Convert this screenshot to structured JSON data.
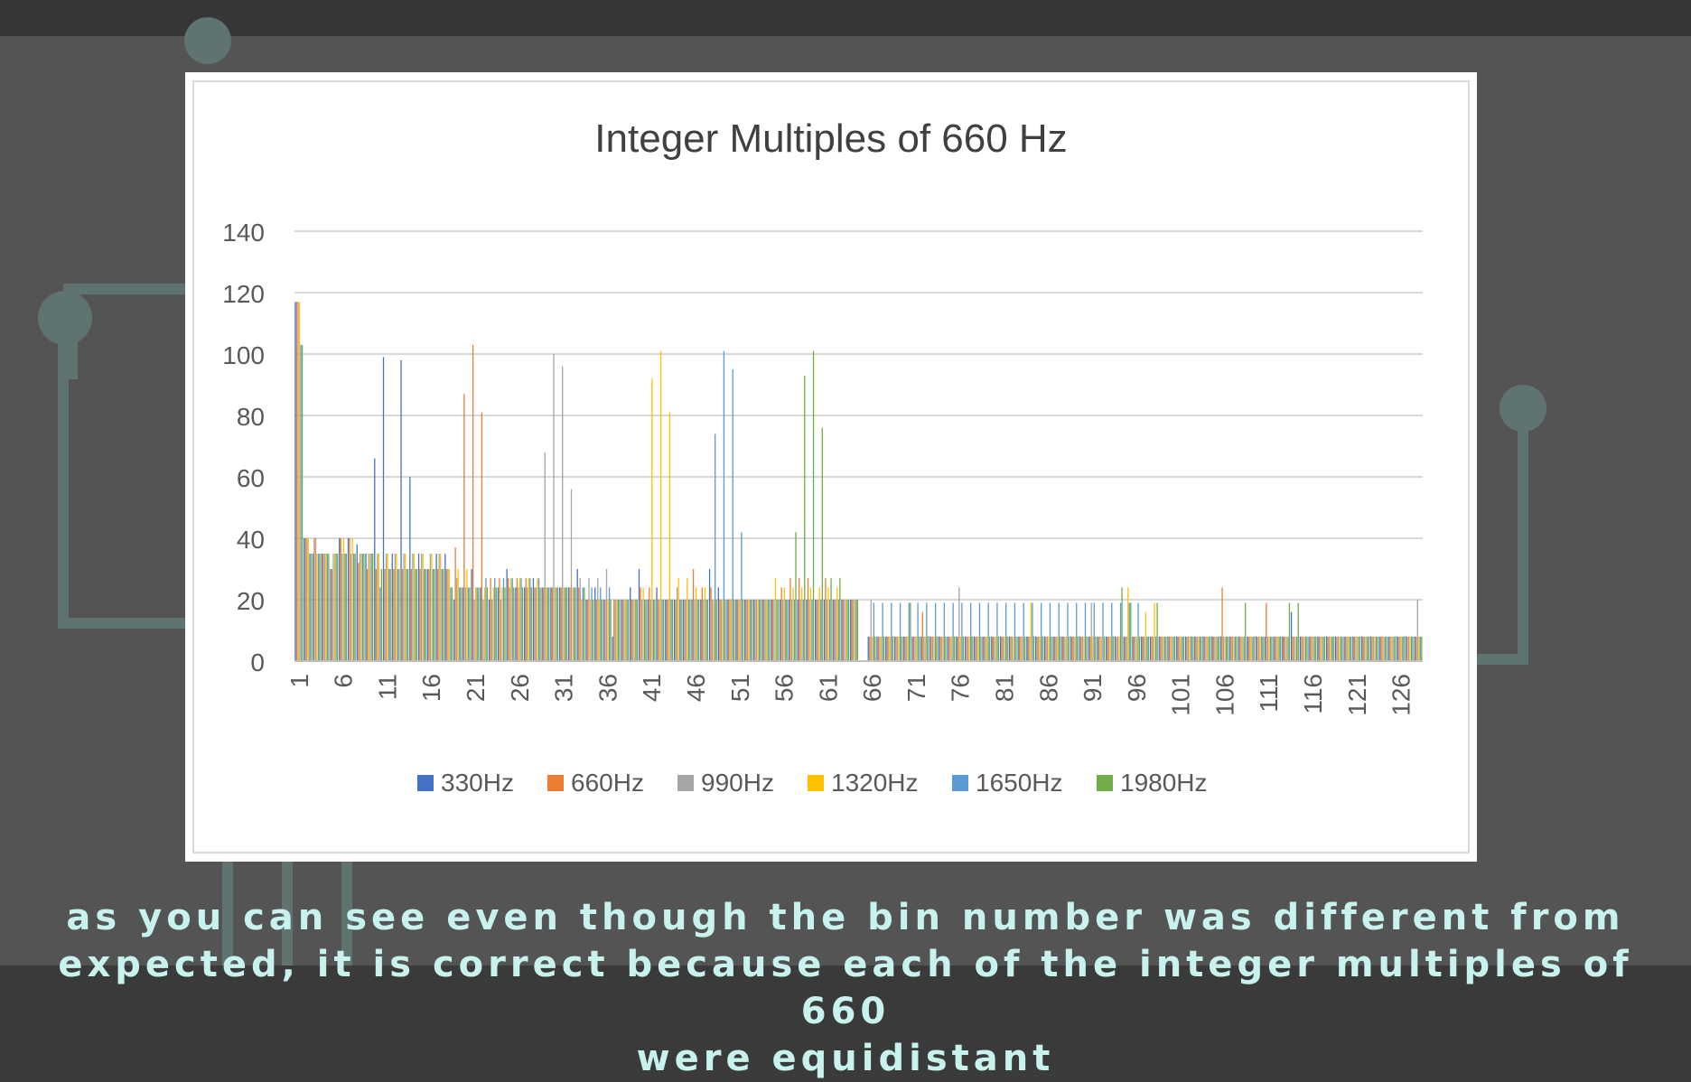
{
  "caption": {
    "line1": "as you can see even though the bin number was different from",
    "line2": "expected, it is correct because each of the integer multiples of 660",
    "line3": "were equidistant"
  },
  "colors": {
    "slide_background": "#545454",
    "caption_text": "#c8f2ee",
    "decoration": "#5f7370"
  },
  "chart_data": {
    "type": "bar",
    "title": "Integer Multiples of 660 Hz",
    "xlabel": "",
    "ylabel": "",
    "ylim": [
      0,
      140
    ],
    "yticks": [
      0,
      20,
      40,
      60,
      80,
      100,
      120,
      140
    ],
    "x_range": [
      1,
      128
    ],
    "xtick_labels": [
      "1",
      "6",
      "11",
      "16",
      "21",
      "26",
      "31",
      "36",
      "41",
      "46",
      "51",
      "56",
      "61",
      "66",
      "71",
      "76",
      "81",
      "86",
      "91",
      "96",
      "101",
      "106",
      "111",
      "116",
      "121",
      "126"
    ],
    "grid": true,
    "legend_position": "bottom",
    "series": [
      {
        "name": "330Hz",
        "color": "#4472c4",
        "values": [
          117,
          40,
          35,
          35,
          30,
          40,
          40,
          38,
          35,
          66,
          99,
          35,
          98,
          60,
          35,
          30,
          35,
          35,
          20,
          24,
          30,
          24,
          20,
          24,
          30,
          24,
          24,
          27,
          24,
          24,
          24,
          24,
          30,
          20,
          24,
          20,
          8,
          20,
          24,
          30,
          20,
          24,
          20,
          20,
          20,
          20,
          20,
          30,
          24,
          20,
          20,
          20,
          20,
          20,
          20,
          20,
          20,
          20,
          20,
          20,
          20,
          20,
          20,
          20,
          0,
          8,
          8,
          8,
          8,
          8,
          8,
          8,
          8,
          8,
          8,
          8,
          8,
          8,
          8,
          8,
          8,
          8,
          8,
          8,
          8,
          8,
          8,
          8,
          8,
          8,
          8,
          8,
          8,
          8,
          8,
          8,
          8,
          8,
          8,
          8,
          8,
          8,
          8,
          8,
          8,
          8,
          8,
          8,
          8,
          8,
          8,
          8,
          8,
          16,
          8,
          8,
          8,
          8,
          8,
          8,
          8,
          8,
          8,
          8,
          8,
          8,
          8,
          8
        ]
      },
      {
        "name": "660Hz",
        "color": "#ed7d31",
        "values": [
          117,
          40,
          40,
          35,
          30,
          40,
          40,
          32,
          30,
          30,
          30,
          30,
          30,
          30,
          30,
          30,
          30,
          30,
          37,
          87,
          103,
          81,
          27,
          27,
          27,
          27,
          27,
          24,
          24,
          24,
          24,
          24,
          24,
          20,
          20,
          20,
          20,
          20,
          20,
          24,
          24,
          20,
          20,
          20,
          20,
          30,
          24,
          24,
          20,
          20,
          20,
          20,
          20,
          20,
          20,
          24,
          27,
          27,
          27,
          20,
          27,
          20,
          20,
          20,
          0,
          8,
          8,
          8,
          8,
          8,
          8,
          16,
          8,
          8,
          8,
          8,
          8,
          8,
          8,
          8,
          8,
          8,
          8,
          8,
          8,
          8,
          8,
          8,
          8,
          8,
          8,
          8,
          8,
          8,
          8,
          8,
          8,
          8,
          8,
          8,
          8,
          8,
          8,
          8,
          8,
          24,
          8,
          8,
          8,
          8,
          19,
          8,
          8,
          8,
          8,
          8,
          8,
          8,
          8,
          8,
          8,
          8,
          8,
          8,
          8,
          8,
          8,
          8
        ]
      },
      {
        "name": "990Hz",
        "color": "#a5a5a5",
        "values": [
          117,
          40,
          40,
          35,
          35,
          35,
          35,
          35,
          35,
          35,
          35,
          35,
          35,
          35,
          35,
          35,
          35,
          30,
          27,
          24,
          20,
          20,
          20,
          20,
          24,
          24,
          24,
          24,
          68,
          100,
          96,
          56,
          27,
          27,
          27,
          30,
          20,
          20,
          20,
          20,
          20,
          20,
          20,
          24,
          20,
          20,
          20,
          20,
          20,
          20,
          20,
          20,
          20,
          20,
          20,
          20,
          20,
          20,
          20,
          20,
          20,
          20,
          20,
          20,
          0,
          20,
          8,
          8,
          8,
          8,
          8,
          8,
          8,
          8,
          8,
          24,
          8,
          8,
          8,
          8,
          8,
          8,
          8,
          8,
          8,
          8,
          8,
          8,
          8,
          8,
          19,
          8,
          8,
          8,
          8,
          8,
          8,
          8,
          8,
          8,
          8,
          8,
          8,
          8,
          8,
          8,
          8,
          8,
          8,
          8,
          8,
          8,
          8,
          8,
          8,
          8,
          8,
          8,
          8,
          8,
          8,
          8,
          8,
          8,
          8,
          8,
          8,
          20
        ]
      },
      {
        "name": "1320Hz",
        "color": "#ffc000",
        "values": [
          117,
          40,
          35,
          35,
          35,
          40,
          40,
          35,
          35,
          35,
          35,
          35,
          35,
          35,
          35,
          35,
          35,
          30,
          30,
          30,
          24,
          24,
          24,
          24,
          27,
          27,
          27,
          27,
          24,
          24,
          24,
          24,
          20,
          20,
          20,
          20,
          20,
          20,
          20,
          24,
          92,
          101,
          81,
          27,
          27,
          24,
          24,
          20,
          20,
          20,
          20,
          20,
          20,
          20,
          27,
          24,
          24,
          24,
          24,
          24,
          24,
          24,
          20,
          20,
          0,
          8,
          8,
          8,
          8,
          8,
          8,
          8,
          8,
          8,
          8,
          8,
          8,
          8,
          8,
          8,
          8,
          8,
          8,
          19,
          8,
          8,
          8,
          8,
          8,
          8,
          8,
          8,
          8,
          8,
          24,
          8,
          16,
          19,
          8,
          8,
          8,
          8,
          8,
          8,
          8,
          8,
          8,
          8,
          8,
          8,
          8,
          8,
          8,
          8,
          8,
          8,
          8,
          8,
          8,
          8,
          8,
          8,
          8,
          8,
          8,
          8,
          8,
          8
        ]
      },
      {
        "name": "1650Hz",
        "color": "#5b9bd5",
        "values": [
          103,
          35,
          35,
          35,
          35,
          35,
          35,
          35,
          35,
          24,
          30,
          30,
          30,
          30,
          30,
          30,
          30,
          24,
          24,
          24,
          24,
          27,
          27,
          27,
          27,
          27,
          27,
          27,
          24,
          24,
          24,
          24,
          24,
          24,
          24,
          24,
          20,
          20,
          20,
          20,
          20,
          20,
          20,
          20,
          20,
          20,
          20,
          74,
          101,
          95,
          42,
          20,
          20,
          20,
          20,
          20,
          20,
          20,
          20,
          20,
          20,
          20,
          20,
          20,
          0,
          19,
          19,
          19,
          19,
          19,
          19,
          19,
          19,
          19,
          19,
          19,
          19,
          19,
          19,
          19,
          19,
          19,
          19,
          19,
          19,
          19,
          19,
          19,
          19,
          19,
          19,
          19,
          19,
          19,
          19,
          19,
          8,
          8,
          8,
          8,
          8,
          8,
          8,
          8,
          8,
          8,
          8,
          8,
          8,
          8,
          8,
          8,
          8,
          8,
          8,
          8,
          8,
          8,
          8,
          8,
          8,
          8,
          8,
          8,
          8,
          8,
          8,
          8
        ]
      },
      {
        "name": "1980Hz",
        "color": "#70ad47",
        "values": [
          103,
          35,
          35,
          35,
          35,
          35,
          35,
          35,
          35,
          30,
          30,
          30,
          30,
          30,
          30,
          30,
          30,
          24,
          24,
          24,
          24,
          24,
          24,
          24,
          24,
          24,
          24,
          24,
          24,
          24,
          24,
          24,
          24,
          20,
          20,
          20,
          20,
          20,
          20,
          20,
          20,
          20,
          20,
          20,
          20,
          20,
          20,
          20,
          20,
          20,
          20,
          20,
          20,
          20,
          20,
          20,
          42,
          93,
          101,
          76,
          27,
          27,
          20,
          20,
          0,
          8,
          8,
          8,
          8,
          19,
          8,
          8,
          8,
          8,
          8,
          8,
          8,
          8,
          8,
          8,
          8,
          8,
          8,
          8,
          8,
          8,
          8,
          8,
          8,
          8,
          8,
          8,
          8,
          24,
          19,
          8,
          8,
          19,
          8,
          8,
          8,
          8,
          8,
          8,
          8,
          8,
          8,
          19,
          8,
          8,
          8,
          8,
          19,
          19,
          8,
          8,
          8,
          8,
          8,
          8,
          8,
          8,
          8,
          8,
          8,
          8,
          8,
          8
        ]
      }
    ]
  }
}
